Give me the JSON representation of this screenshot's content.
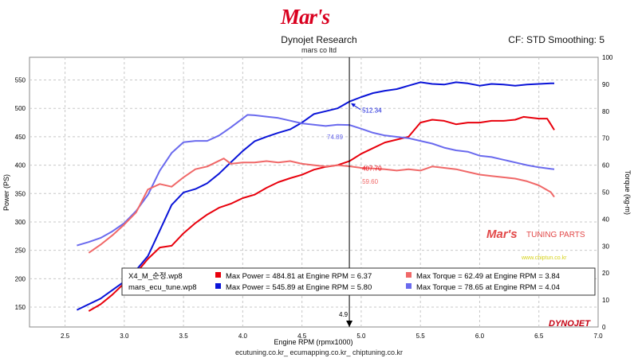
{
  "header": {
    "logo_text": "Mar's",
    "title": "Dynojet Research",
    "subtitle": "mars co ltd",
    "cf_label": "CF: STD Smoothing: 5"
  },
  "footer": {
    "text": "ecutuning.co.kr_ ecumapping.co.kr_ chiptuning.co.kr"
  },
  "watermark": {
    "brand": "Mar's",
    "tag": "TUNING PARTS",
    "url": "www.chiptun.co.kr",
    "corner": "DYNOJET"
  },
  "colors": {
    "stock_power": "#e8000c",
    "stock_torque": "#f06868",
    "tuned_power": "#0a14d8",
    "tuned_torque": "#6a6aee",
    "grid": "#c8c8c8",
    "cursor": "#000000"
  },
  "chart_data": {
    "type": "line",
    "xlabel": "Engine RPM (rpmx1000)",
    "ylabel": "Power (PS)",
    "y2label": "Torque (kg-m)",
    "xlim": [
      2.2,
      7.0
    ],
    "ylim": [
      115,
      590
    ],
    "y2lim": [
      0,
      100
    ],
    "x_ticks": [
      "2.5",
      "3.0",
      "3.5",
      "4.0",
      "4.5",
      "5.0",
      "5.5",
      "6.0",
      "6.5",
      "7.0"
    ],
    "y_ticks": [
      "150",
      "200",
      "250",
      "300",
      "350",
      "400",
      "450",
      "500",
      "550"
    ],
    "y2_ticks": [
      "0",
      "10",
      "20",
      "30",
      "40",
      "50",
      "60",
      "70",
      "80",
      "90",
      "100"
    ],
    "cursor": {
      "x": 4.9,
      "label": "4.9",
      "readouts": [
        {
          "text": "512.34",
          "series": "tuned_power"
        },
        {
          "text": "74.89",
          "series": "tuned_torque"
        },
        {
          "text": "407.70",
          "series": "stock_power"
        },
        {
          "text": "59.60",
          "series": "stock_torque"
        }
      ]
    },
    "legend": {
      "rows": [
        {
          "file": "X4_M_순정.wp8",
          "power": "Max Power = 484.81 at Engine RPM = 6.37",
          "torque": "Max Torque = 62.49 at Engine RPM = 3.84"
        },
        {
          "file": "mars_ecu_tune.wp8",
          "power": "Max Power = 545.89 at Engine RPM = 5.80",
          "torque": "Max Torque = 78.65 at Engine RPM = 4.04"
        }
      ]
    },
    "series": [
      {
        "key": "tuned_power",
        "axis": "left",
        "points": [
          [
            2.6,
            145
          ],
          [
            2.8,
            165
          ],
          [
            3.0,
            195
          ],
          [
            3.1,
            215
          ],
          [
            3.2,
            240
          ],
          [
            3.3,
            285
          ],
          [
            3.4,
            330
          ],
          [
            3.5,
            352
          ],
          [
            3.6,
            358
          ],
          [
            3.7,
            368
          ],
          [
            3.8,
            385
          ],
          [
            3.9,
            405
          ],
          [
            4.0,
            425
          ],
          [
            4.1,
            442
          ],
          [
            4.2,
            450
          ],
          [
            4.3,
            457
          ],
          [
            4.4,
            463
          ],
          [
            4.5,
            475
          ],
          [
            4.6,
            490
          ],
          [
            4.7,
            495
          ],
          [
            4.8,
            500
          ],
          [
            4.9,
            512
          ],
          [
            5.0,
            520
          ],
          [
            5.1,
            527
          ],
          [
            5.2,
            531
          ],
          [
            5.3,
            534
          ],
          [
            5.4,
            540
          ],
          [
            5.5,
            546
          ],
          [
            5.6,
            543
          ],
          [
            5.7,
            542
          ],
          [
            5.8,
            546
          ],
          [
            5.9,
            544
          ],
          [
            6.0,
            540
          ],
          [
            6.1,
            543
          ],
          [
            6.2,
            542
          ],
          [
            6.3,
            540
          ],
          [
            6.4,
            542
          ],
          [
            6.5,
            543
          ],
          [
            6.6,
            544
          ],
          [
            6.63,
            544
          ]
        ]
      },
      {
        "key": "stock_power",
        "axis": "left",
        "points": [
          [
            2.7,
            143
          ],
          [
            2.8,
            155
          ],
          [
            2.9,
            172
          ],
          [
            3.0,
            192
          ],
          [
            3.1,
            210
          ],
          [
            3.2,
            235
          ],
          [
            3.3,
            255
          ],
          [
            3.4,
            258
          ],
          [
            3.5,
            280
          ],
          [
            3.6,
            298
          ],
          [
            3.7,
            313
          ],
          [
            3.8,
            325
          ],
          [
            3.9,
            332
          ],
          [
            4.0,
            342
          ],
          [
            4.1,
            348
          ],
          [
            4.2,
            360
          ],
          [
            4.3,
            370
          ],
          [
            4.4,
            377
          ],
          [
            4.5,
            383
          ],
          [
            4.6,
            392
          ],
          [
            4.7,
            397
          ],
          [
            4.8,
            400
          ],
          [
            4.9,
            407
          ],
          [
            5.0,
            420
          ],
          [
            5.1,
            430
          ],
          [
            5.2,
            440
          ],
          [
            5.3,
            445
          ],
          [
            5.4,
            450
          ],
          [
            5.5,
            475
          ],
          [
            5.6,
            480
          ],
          [
            5.7,
            478
          ],
          [
            5.8,
            472
          ],
          [
            5.9,
            475
          ],
          [
            6.0,
            475
          ],
          [
            6.1,
            478
          ],
          [
            6.2,
            478
          ],
          [
            6.3,
            480
          ],
          [
            6.37,
            485
          ],
          [
            6.5,
            482
          ],
          [
            6.57,
            482
          ],
          [
            6.6,
            472
          ],
          [
            6.63,
            462
          ]
        ]
      },
      {
        "key": "tuned_torque",
        "axis": "right",
        "points": [
          [
            2.6,
            30.2
          ],
          [
            2.7,
            31.5
          ],
          [
            2.8,
            33.0
          ],
          [
            2.9,
            35.5
          ],
          [
            3.0,
            38.5
          ],
          [
            3.1,
            43.0
          ],
          [
            3.2,
            49.0
          ],
          [
            3.3,
            58.0
          ],
          [
            3.4,
            64.5
          ],
          [
            3.5,
            68.5
          ],
          [
            3.6,
            69.0
          ],
          [
            3.7,
            69.0
          ],
          [
            3.8,
            71.0
          ],
          [
            3.9,
            74.0
          ],
          [
            4.04,
            78.65
          ],
          [
            4.1,
            78.5
          ],
          [
            4.2,
            78.0
          ],
          [
            4.3,
            77.5
          ],
          [
            4.4,
            76.5
          ],
          [
            4.5,
            75.5
          ],
          [
            4.6,
            75.0
          ],
          [
            4.7,
            74.5
          ],
          [
            4.8,
            75.0
          ],
          [
            4.9,
            74.9
          ],
          [
            5.0,
            73.5
          ],
          [
            5.1,
            72.0
          ],
          [
            5.2,
            71.0
          ],
          [
            5.3,
            70.5
          ],
          [
            5.4,
            70.0
          ],
          [
            5.5,
            69.0
          ],
          [
            5.6,
            68.0
          ],
          [
            5.7,
            66.5
          ],
          [
            5.8,
            65.5
          ],
          [
            5.9,
            65.0
          ],
          [
            6.0,
            63.5
          ],
          [
            6.1,
            63.0
          ],
          [
            6.2,
            62.0
          ],
          [
            6.3,
            61.0
          ],
          [
            6.4,
            60.0
          ],
          [
            6.5,
            59.2
          ],
          [
            6.6,
            58.6
          ],
          [
            6.63,
            58.5
          ]
        ]
      },
      {
        "key": "stock_torque",
        "axis": "right",
        "points": [
          [
            2.7,
            27.5
          ],
          [
            2.8,
            30.5
          ],
          [
            2.9,
            34.0
          ],
          [
            3.0,
            38.0
          ],
          [
            3.1,
            42.5
          ],
          [
            3.2,
            51.0
          ],
          [
            3.3,
            53.0
          ],
          [
            3.4,
            52.0
          ],
          [
            3.5,
            55.5
          ],
          [
            3.6,
            58.5
          ],
          [
            3.7,
            59.5
          ],
          [
            3.84,
            62.49
          ],
          [
            3.9,
            60.5
          ],
          [
            4.0,
            61.0
          ],
          [
            4.1,
            61.0
          ],
          [
            4.2,
            61.5
          ],
          [
            4.3,
            61.0
          ],
          [
            4.4,
            61.5
          ],
          [
            4.5,
            60.5
          ],
          [
            4.6,
            60.0
          ],
          [
            4.7,
            59.5
          ],
          [
            4.8,
            60.0
          ],
          [
            4.9,
            59.6
          ],
          [
            5.0,
            59.0
          ],
          [
            5.1,
            58.8
          ],
          [
            5.2,
            58.5
          ],
          [
            5.3,
            58.0
          ],
          [
            5.4,
            58.5
          ],
          [
            5.5,
            58.0
          ],
          [
            5.6,
            59.5
          ],
          [
            5.7,
            59.0
          ],
          [
            5.8,
            58.5
          ],
          [
            5.9,
            57.5
          ],
          [
            6.0,
            56.5
          ],
          [
            6.1,
            56.0
          ],
          [
            6.2,
            55.5
          ],
          [
            6.3,
            55.0
          ],
          [
            6.4,
            54.0
          ],
          [
            6.5,
            52.5
          ],
          [
            6.6,
            50.0
          ],
          [
            6.63,
            48.2
          ]
        ]
      }
    ]
  }
}
